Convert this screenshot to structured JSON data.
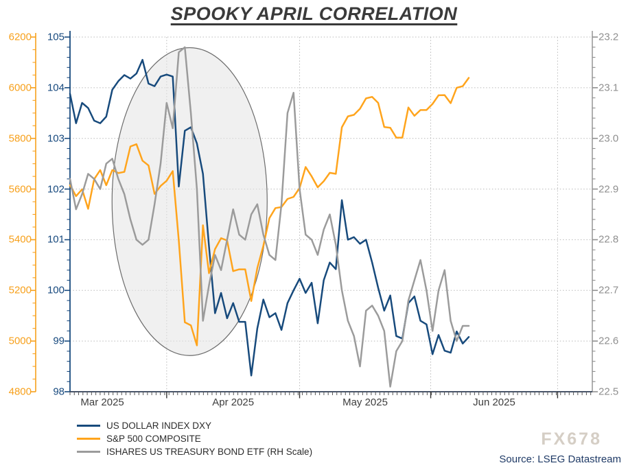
{
  "title": "SPOOKY APRIL CORRELATION",
  "watermark": "FX678",
  "source": "Source: LSEG Datastream",
  "colors": {
    "dxy": "#174a7c",
    "sp500": "#ffa41c",
    "etf": "#9b9b9b",
    "gridline": "#b8b8b8",
    "bottom_axis": "#2e3d55",
    "month_label": "#3d3d3d",
    "ellipse_fill": "#e4e4e4",
    "ellipse_stroke": "#6b6b6b"
  },
  "axes": {
    "left_outer_sp500": {
      "min": 4800,
      "max": 6200,
      "step": 200,
      "minor_step": 50,
      "color": "#f7a01b"
    },
    "left_inner_dxy": {
      "min": 98,
      "max": 105,
      "step": 1,
      "minor_step": 0.2,
      "color": "#17497e"
    },
    "right_etf": {
      "min": 22.5,
      "max": 23.2,
      "step": 0.1,
      "minor_step": 0.02,
      "decimals": 1,
      "color": "#8f8f8f"
    },
    "x": {
      "labels": [
        "Mar 2025",
        "Apr 2025",
        "May 2025",
        "Jun 2025"
      ]
    }
  },
  "legend": [
    {
      "label": "US DOLLAR INDEX DXY",
      "color": "#174a7c"
    },
    {
      "label": "S&P 500 COMPOSITE",
      "color": "#ffa41c"
    },
    {
      "label": "ISHARES US TREASURY BOND ETF (RH Scale)",
      "color": "#9b9b9b"
    }
  ],
  "chart_data": {
    "type": "line",
    "title": "SPOOKY APRIL CORRELATION",
    "x_dates": [
      "2025-03-10",
      "2025-03-11",
      "2025-03-12",
      "2025-03-13",
      "2025-03-14",
      "2025-03-17",
      "2025-03-18",
      "2025-03-19",
      "2025-03-20",
      "2025-03-21",
      "2025-03-24",
      "2025-03-25",
      "2025-03-26",
      "2025-03-27",
      "2025-03-28",
      "2025-03-31",
      "2025-04-01",
      "2025-04-02",
      "2025-04-03",
      "2025-04-04",
      "2025-04-07",
      "2025-04-08",
      "2025-04-09",
      "2025-04-10",
      "2025-04-11",
      "2025-04-14",
      "2025-04-15",
      "2025-04-16",
      "2025-04-17",
      "2025-04-18",
      "2025-04-21",
      "2025-04-22",
      "2025-04-23",
      "2025-04-24",
      "2025-04-25",
      "2025-04-28",
      "2025-04-29",
      "2025-04-30",
      "2025-05-01",
      "2025-05-02",
      "2025-05-05",
      "2025-05-06",
      "2025-05-07",
      "2025-05-08",
      "2025-05-09",
      "2025-05-12",
      "2025-05-13",
      "2025-05-14",
      "2025-05-15",
      "2025-05-16",
      "2025-05-19",
      "2025-05-20",
      "2025-05-21",
      "2025-05-22",
      "2025-05-23",
      "2025-05-26",
      "2025-05-27",
      "2025-05-28",
      "2025-05-29",
      "2025-05-30",
      "2025-06-02",
      "2025-06-03",
      "2025-06-04",
      "2025-06-05",
      "2025-06-06",
      "2025-06-09",
      "2025-06-10"
    ],
    "series": [
      {
        "name": "US DOLLAR INDEX DXY",
        "axis": "left_inner_dxy",
        "color": "#174a7c",
        "values": [
          103.88,
          103.3,
          103.7,
          103.6,
          103.35,
          103.3,
          103.43,
          103.96,
          104.13,
          104.25,
          104.18,
          104.28,
          104.55,
          104.08,
          104.03,
          104.22,
          104.26,
          104.22,
          102.05,
          103.15,
          103.22,
          102.9,
          102.3,
          100.87,
          99.55,
          99.95,
          99.45,
          99.75,
          99.38,
          99.38,
          98.32,
          99.25,
          99.82,
          99.47,
          99.55,
          99.22,
          99.75,
          100.0,
          100.23,
          99.95,
          100.15,
          99.35,
          100.2,
          100.55,
          100.42,
          101.78,
          101.0,
          101.05,
          100.92,
          101.0,
          100.55,
          100.05,
          99.6,
          99.9,
          99.1,
          99.05,
          99.75,
          99.88,
          99.4,
          99.33,
          98.74,
          99.12,
          98.81,
          98.77,
          99.19,
          98.95,
          99.08
        ]
      },
      {
        "name": "S&P 500 COMPOSITE",
        "axis": "left_outer_sp500",
        "color": "#ffa41c",
        "values": [
          5615,
          5572,
          5599,
          5522,
          5639,
          5675,
          5615,
          5675,
          5663,
          5668,
          5768,
          5777,
          5712,
          5693,
          5581,
          5612,
          5633,
          5671,
          5397,
          5074,
          5062,
          4983,
          5457,
          5268,
          5363,
          5406,
          5397,
          5276,
          5283,
          5283,
          5158,
          5288,
          5376,
          5485,
          5525,
          5529,
          5561,
          5569,
          5604,
          5687,
          5650,
          5607,
          5631,
          5664,
          5660,
          5844,
          5887,
          5893,
          5917,
          5958,
          5964,
          5940,
          5845,
          5842,
          5803,
          5803,
          5922,
          5889,
          5912,
          5912,
          5936,
          5970,
          5971,
          5939,
          6000,
          6006,
          6039
        ]
      },
      {
        "name": "ISHARES US TREASURY BOND ETF (RH Scale)",
        "axis": "right_etf",
        "color": "#9b9b9b",
        "values": [
          22.92,
          22.86,
          22.89,
          22.93,
          22.92,
          22.9,
          22.95,
          22.96,
          22.92,
          22.89,
          22.84,
          22.8,
          22.79,
          22.8,
          22.87,
          22.95,
          23.07,
          23.02,
          23.17,
          23.18,
          23.05,
          22.9,
          22.64,
          22.71,
          22.77,
          22.74,
          22.8,
          22.86,
          22.81,
          22.8,
          22.85,
          22.87,
          22.81,
          22.77,
          22.76,
          22.87,
          23.05,
          23.09,
          22.9,
          22.81,
          22.8,
          22.77,
          22.82,
          22.85,
          22.79,
          22.7,
          22.64,
          22.61,
          22.55,
          22.66,
          22.67,
          22.65,
          22.62,
          22.51,
          22.58,
          22.6,
          22.68,
          22.72,
          22.76,
          22.7,
          22.62,
          22.7,
          22.74,
          22.64,
          22.6,
          22.63,
          22.63
        ]
      }
    ],
    "annotation_ellipse": {
      "center_x_frac": 0.229,
      "center_y_frac": 0.464,
      "rx_frac": 0.1485,
      "ry_frac": 0.434,
      "note": "highlights early-April correlation break"
    }
  }
}
